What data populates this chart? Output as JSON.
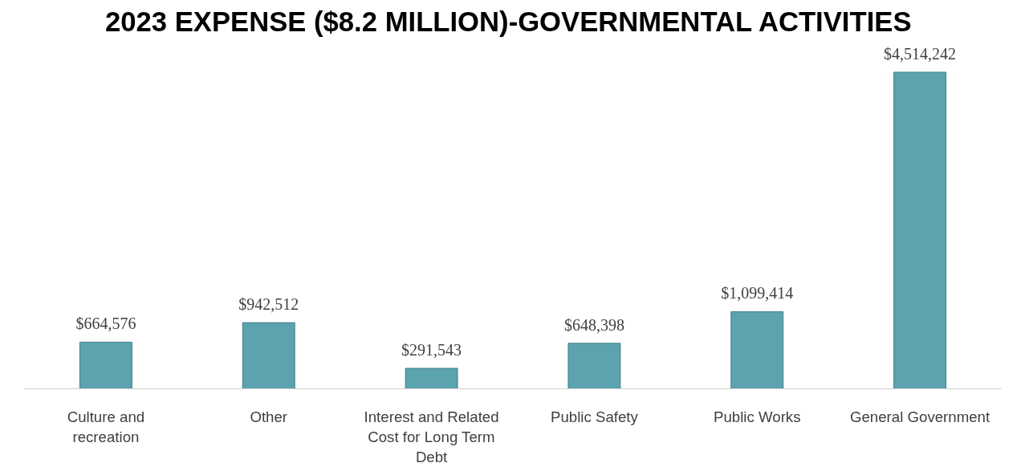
{
  "chart_data": {
    "type": "bar",
    "title": "2023 EXPENSE ($8.2 MILLION)-GOVERNMENTAL  ACTIVITIES",
    "categories": [
      "Culture and recreation",
      "Other",
      "Interest and Related Cost for Long Term Debt",
      "Public Safety",
      "Public Works",
      "General Government"
    ],
    "values": [
      664576,
      942512,
      291543,
      648398,
      1099414,
      4514242
    ],
    "value_labels": [
      "$664,576",
      "$942,512",
      "$291,543",
      "$648,398",
      "$1,099,414",
      "$4,514,242"
    ],
    "color": "#5ba3ae",
    "grid": false
  }
}
